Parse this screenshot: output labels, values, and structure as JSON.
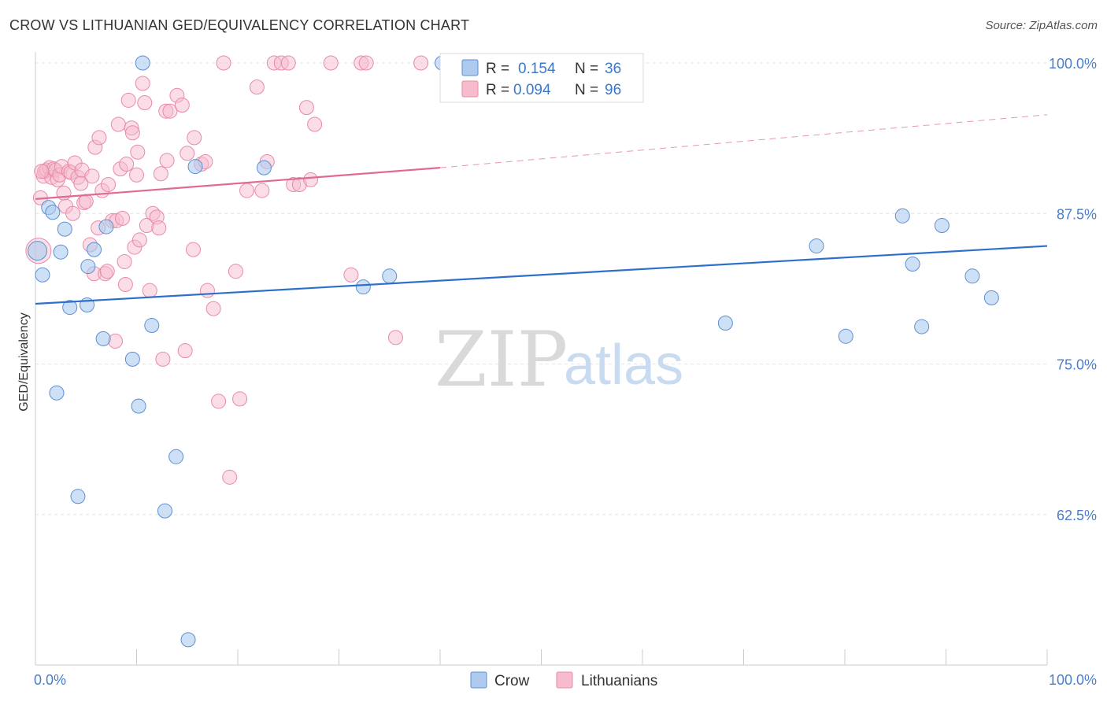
{
  "title": "CROW VS LITHUANIAN GED/EQUIVALENCY CORRELATION CHART",
  "source": "Source: ZipAtlas.com",
  "watermark": {
    "zip": "ZIP",
    "atlas": "atlas"
  },
  "chart_data": {
    "type": "scatter",
    "ylabel": "GED/Equivalency",
    "xlim": [
      0,
      100
    ],
    "ylim": [
      50,
      100
    ],
    "x_tick_labels": [
      "0.0%",
      "100.0%"
    ],
    "y_ticks": [
      62.5,
      75.0,
      87.5,
      100.0
    ],
    "y_tick_labels": [
      "62.5%",
      "75.0%",
      "87.5%",
      "100.0%"
    ],
    "grid": true,
    "legend_placement": "top-center",
    "colors": {
      "crow_fill": "#aecbef",
      "crow_stroke": "#5b8fd4",
      "crow_line": "#2f6fcc",
      "lith_fill": "#f6bccd",
      "lith_stroke": "#e98aa6",
      "lith_line": "#e06a91",
      "tick": "#4a7ecb"
    },
    "legend": [
      {
        "r_label": "R =",
        "r_value": "0.154",
        "n_label": "N =",
        "n_value": "36"
      },
      {
        "r_label": "R =",
        "r_value": "0.094",
        "n_label": "N =",
        "n_value": "96"
      }
    ],
    "series": [
      {
        "name": "Crow",
        "trend": {
          "x0": 0,
          "y0": 80.0,
          "x1": 100,
          "y1": 84.8
        },
        "points": [
          [
            0.2,
            84.4
          ],
          [
            0.7,
            82.4
          ],
          [
            1.3,
            88.0
          ],
          [
            1.7,
            87.6
          ],
          [
            2.1,
            72.6
          ],
          [
            2.5,
            84.3
          ],
          [
            2.9,
            86.2
          ],
          [
            3.4,
            79.7
          ],
          [
            4.2,
            64.0
          ],
          [
            5.1,
            79.9
          ],
          [
            5.2,
            83.1
          ],
          [
            5.8,
            84.5
          ],
          [
            6.7,
            77.1
          ],
          [
            7.0,
            86.4
          ],
          [
            9.6,
            75.4
          ],
          [
            10.2,
            71.5
          ],
          [
            10.6,
            100.0
          ],
          [
            11.5,
            78.2
          ],
          [
            12.8,
            62.8
          ],
          [
            13.9,
            67.3
          ],
          [
            15.1,
            52.1
          ],
          [
            15.8,
            91.4
          ],
          [
            22.6,
            91.3
          ],
          [
            32.4,
            81.4
          ],
          [
            35.0,
            82.3
          ],
          [
            40.2,
            100.0
          ],
          [
            68.2,
            78.4
          ],
          [
            77.2,
            84.8
          ],
          [
            80.1,
            77.3
          ],
          [
            85.7,
            87.3
          ],
          [
            86.7,
            83.3
          ],
          [
            87.6,
            78.1
          ],
          [
            89.6,
            86.5
          ],
          [
            92.6,
            82.3
          ],
          [
            94.5,
            80.5
          ],
          [
            56.8,
            100.0
          ]
        ]
      },
      {
        "name": "Lithuanians",
        "trend": {
          "x0": 0,
          "y0": 88.7,
          "x1": 40,
          "y1": 91.3,
          "x_dash_end": 100,
          "y_dash_end": 95.7
        },
        "points": [
          [
            0.3,
            84.4
          ],
          [
            0.5,
            88.8
          ],
          [
            0.8,
            90.6
          ],
          [
            0.9,
            91.0
          ],
          [
            1.1,
            91.1
          ],
          [
            1.4,
            91.3
          ],
          [
            1.6,
            90.5
          ],
          [
            1.8,
            91.2
          ],
          [
            2.0,
            91.1
          ],
          [
            2.2,
            90.3
          ],
          [
            2.4,
            90.7
          ],
          [
            2.6,
            91.4
          ],
          [
            2.8,
            89.2
          ],
          [
            3.0,
            88.1
          ],
          [
            3.3,
            91.0
          ],
          [
            3.5,
            90.9
          ],
          [
            3.7,
            87.5
          ],
          [
            3.9,
            91.7
          ],
          [
            4.2,
            90.5
          ],
          [
            4.5,
            90.0
          ],
          [
            4.6,
            91.1
          ],
          [
            4.8,
            88.4
          ],
          [
            5.0,
            88.5
          ],
          [
            5.4,
            84.9
          ],
          [
            5.6,
            90.6
          ],
          [
            5.8,
            82.5
          ],
          [
            5.9,
            93.0
          ],
          [
            6.2,
            86.3
          ],
          [
            6.3,
            93.8
          ],
          [
            6.6,
            89.4
          ],
          [
            6.9,
            82.5
          ],
          [
            7.1,
            82.7
          ],
          [
            7.2,
            89.9
          ],
          [
            7.6,
            86.9
          ],
          [
            7.9,
            76.9
          ],
          [
            8.0,
            86.9
          ],
          [
            8.2,
            94.9
          ],
          [
            8.4,
            91.2
          ],
          [
            8.6,
            87.1
          ],
          [
            8.8,
            83.5
          ],
          [
            8.9,
            81.6
          ],
          [
            9.0,
            91.6
          ],
          [
            9.2,
            96.9
          ],
          [
            9.5,
            94.6
          ],
          [
            9.6,
            94.2
          ],
          [
            9.8,
            84.7
          ],
          [
            10.0,
            90.7
          ],
          [
            10.1,
            92.6
          ],
          [
            10.3,
            85.3
          ],
          [
            10.6,
            98.3
          ],
          [
            10.8,
            96.7
          ],
          [
            11.0,
            86.5
          ],
          [
            11.3,
            81.1
          ],
          [
            11.6,
            87.5
          ],
          [
            12.0,
            87.2
          ],
          [
            12.2,
            86.3
          ],
          [
            12.4,
            90.8
          ],
          [
            12.6,
            75.4
          ],
          [
            12.9,
            96.0
          ],
          [
            13.0,
            91.9
          ],
          [
            13.3,
            96.0
          ],
          [
            14.0,
            97.3
          ],
          [
            14.5,
            96.5
          ],
          [
            14.8,
            76.1
          ],
          [
            15.0,
            92.5
          ],
          [
            15.6,
            84.5
          ],
          [
            15.7,
            93.8
          ],
          [
            16.4,
            91.6
          ],
          [
            16.8,
            91.8
          ],
          [
            17.0,
            81.1
          ],
          [
            17.6,
            79.6
          ],
          [
            18.1,
            71.9
          ],
          [
            18.6,
            100.0
          ],
          [
            19.2,
            65.6
          ],
          [
            19.8,
            82.7
          ],
          [
            20.2,
            72.1
          ],
          [
            20.9,
            89.4
          ],
          [
            21.9,
            98.0
          ],
          [
            22.4,
            89.4
          ],
          [
            22.9,
            91.8
          ],
          [
            23.6,
            100.0
          ],
          [
            24.3,
            100.0
          ],
          [
            25.0,
            100.0
          ],
          [
            25.5,
            89.9
          ],
          [
            26.1,
            89.9
          ],
          [
            26.8,
            96.3
          ],
          [
            27.2,
            90.3
          ],
          [
            27.6,
            94.9
          ],
          [
            29.2,
            100.0
          ],
          [
            31.2,
            82.4
          ],
          [
            32.2,
            100.0
          ],
          [
            32.7,
            100.0
          ],
          [
            35.6,
            77.2
          ],
          [
            38.1,
            100.0
          ],
          [
            40.8,
            100.0
          ],
          [
            0.6,
            91.0
          ]
        ]
      }
    ]
  }
}
